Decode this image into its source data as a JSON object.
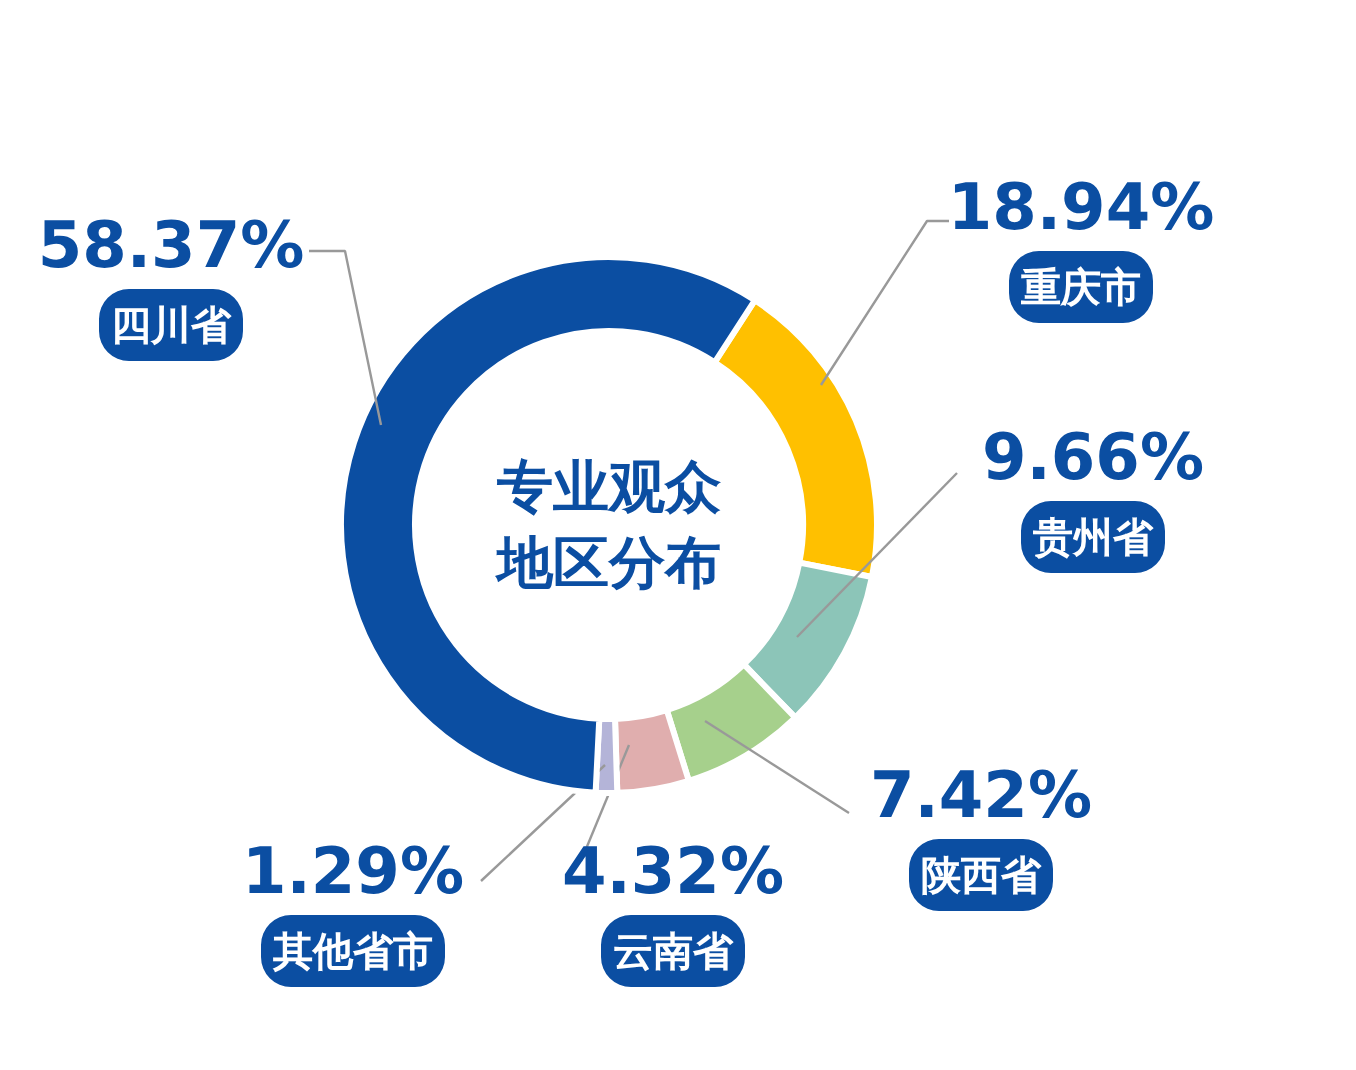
{
  "chart_data": {
    "type": "donut",
    "title": "专业观众地区分布",
    "categories": [
      "重庆市",
      "贵州省",
      "陕西省",
      "云南省",
      "其他省市",
      "四川省"
    ],
    "values": [
      18.94,
      9.66,
      7.42,
      4.32,
      1.29,
      58.37
    ],
    "colors": [
      "#ffc000",
      "#8cc5b8",
      "#a6d08c",
      "#e0aeae",
      "#b4b4d8",
      "#0b4ea2"
    ],
    "value_labels": [
      "18.94%",
      "9.66%",
      "7.42%",
      "4.32%",
      "1.29%",
      "58.37%"
    ]
  }
}
